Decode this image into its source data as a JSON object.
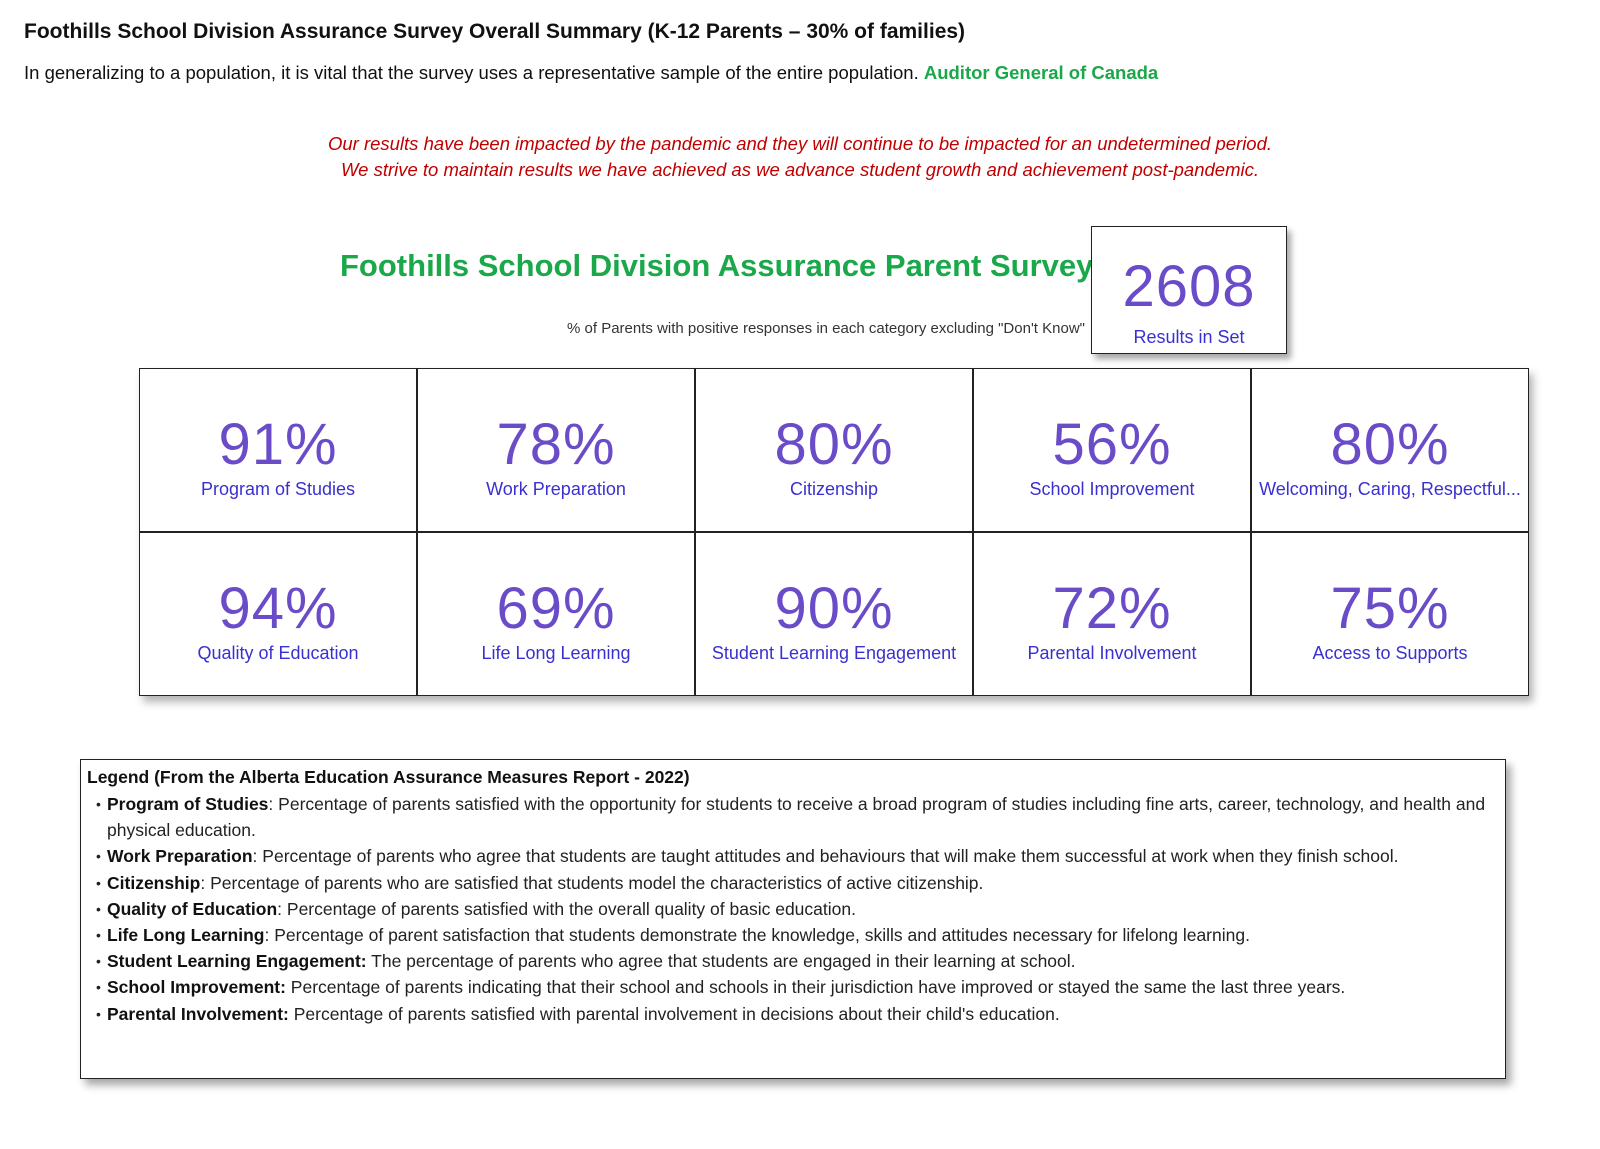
{
  "header": {
    "title": "Foothills School Division Assurance Survey Overall Summary (K-12 Parents – 30% of families)",
    "intro_text": "In generalizing to a population, it is vital that the survey uses a representative sample of the entire population.",
    "intro_source": "Auditor General of Canada"
  },
  "notice": {
    "line1": "Our results have been impacted by the pandemic and they will continue to be impacted for an undetermined period.",
    "line2": "We strive to maintain results we have achieved as we advance student growth and achievement post-pandemic."
  },
  "survey": {
    "title": "Foothills School Division Assurance Parent Survey",
    "subtitle": "% of Parents with positive responses in each category excluding \"Don't Know\"",
    "count_value": "2608",
    "count_label": "Results in Set"
  },
  "cards": [
    {
      "pct": "91%",
      "label": "Program of Studies"
    },
    {
      "pct": "78%",
      "label": "Work Preparation"
    },
    {
      "pct": "80%",
      "label": "Citizenship"
    },
    {
      "pct": "56%",
      "label": "School Improvement"
    },
    {
      "pct": "80%",
      "label": "Welcoming, Caring, Respectful..."
    },
    {
      "pct": "94%",
      "label": "Quality of Education"
    },
    {
      "pct": "69%",
      "label": "Life Long Learning"
    },
    {
      "pct": "90%",
      "label": "Student Learning Engagement"
    },
    {
      "pct": "72%",
      "label": "Parental Involvement"
    },
    {
      "pct": "75%",
      "label": "Access to Supports"
    }
  ],
  "legend": {
    "title": "Legend (From the Alberta Education Assurance Measures Report - 2022)",
    "items": [
      {
        "term": "Program of Studies",
        "sep": ":",
        "text": " Percentage of parents satisfied with the opportunity for students to receive a broad program of studies including fine arts, career, technology, and health and physical education."
      },
      {
        "term": "Work Preparation",
        "sep": ":",
        "text": " Percentage of parents who agree that students are taught attitudes and behaviours that will make them successful at work when they finish school."
      },
      {
        "term": "Citizenship",
        "sep": ":",
        "text": " Percentage of parents who are satisfied that students model the characteristics of active citizenship."
      },
      {
        "term": "Quality of Education",
        "sep": ":",
        "text": " Percentage of parents satisfied with the overall quality of basic education."
      },
      {
        "term": "Life Long Learning",
        "sep": ":",
        "text": " Percentage of parent satisfaction that students demonstrate the knowledge, skills and attitudes necessary for lifelong learning."
      },
      {
        "term": "Student Learning Engagement:",
        "sep": "",
        "text": " The percentage of parents who agree that students are engaged in their learning at school."
      },
      {
        "term": "School Improvement:",
        "sep": "",
        "text": " Percentage of parents indicating that their school and schools in their jurisdiction have improved or stayed the same the last three years."
      },
      {
        "term": "Parental Involvement:",
        "sep": "",
        "text": " Percentage of parents satisfied with parental involvement in decisions about their child's education."
      }
    ]
  },
  "colors": {
    "title_green": "#1aa84a",
    "notice_red": "#c00000",
    "value_purple": "#6a4cc8",
    "label_blue": "#3a30d0"
  }
}
